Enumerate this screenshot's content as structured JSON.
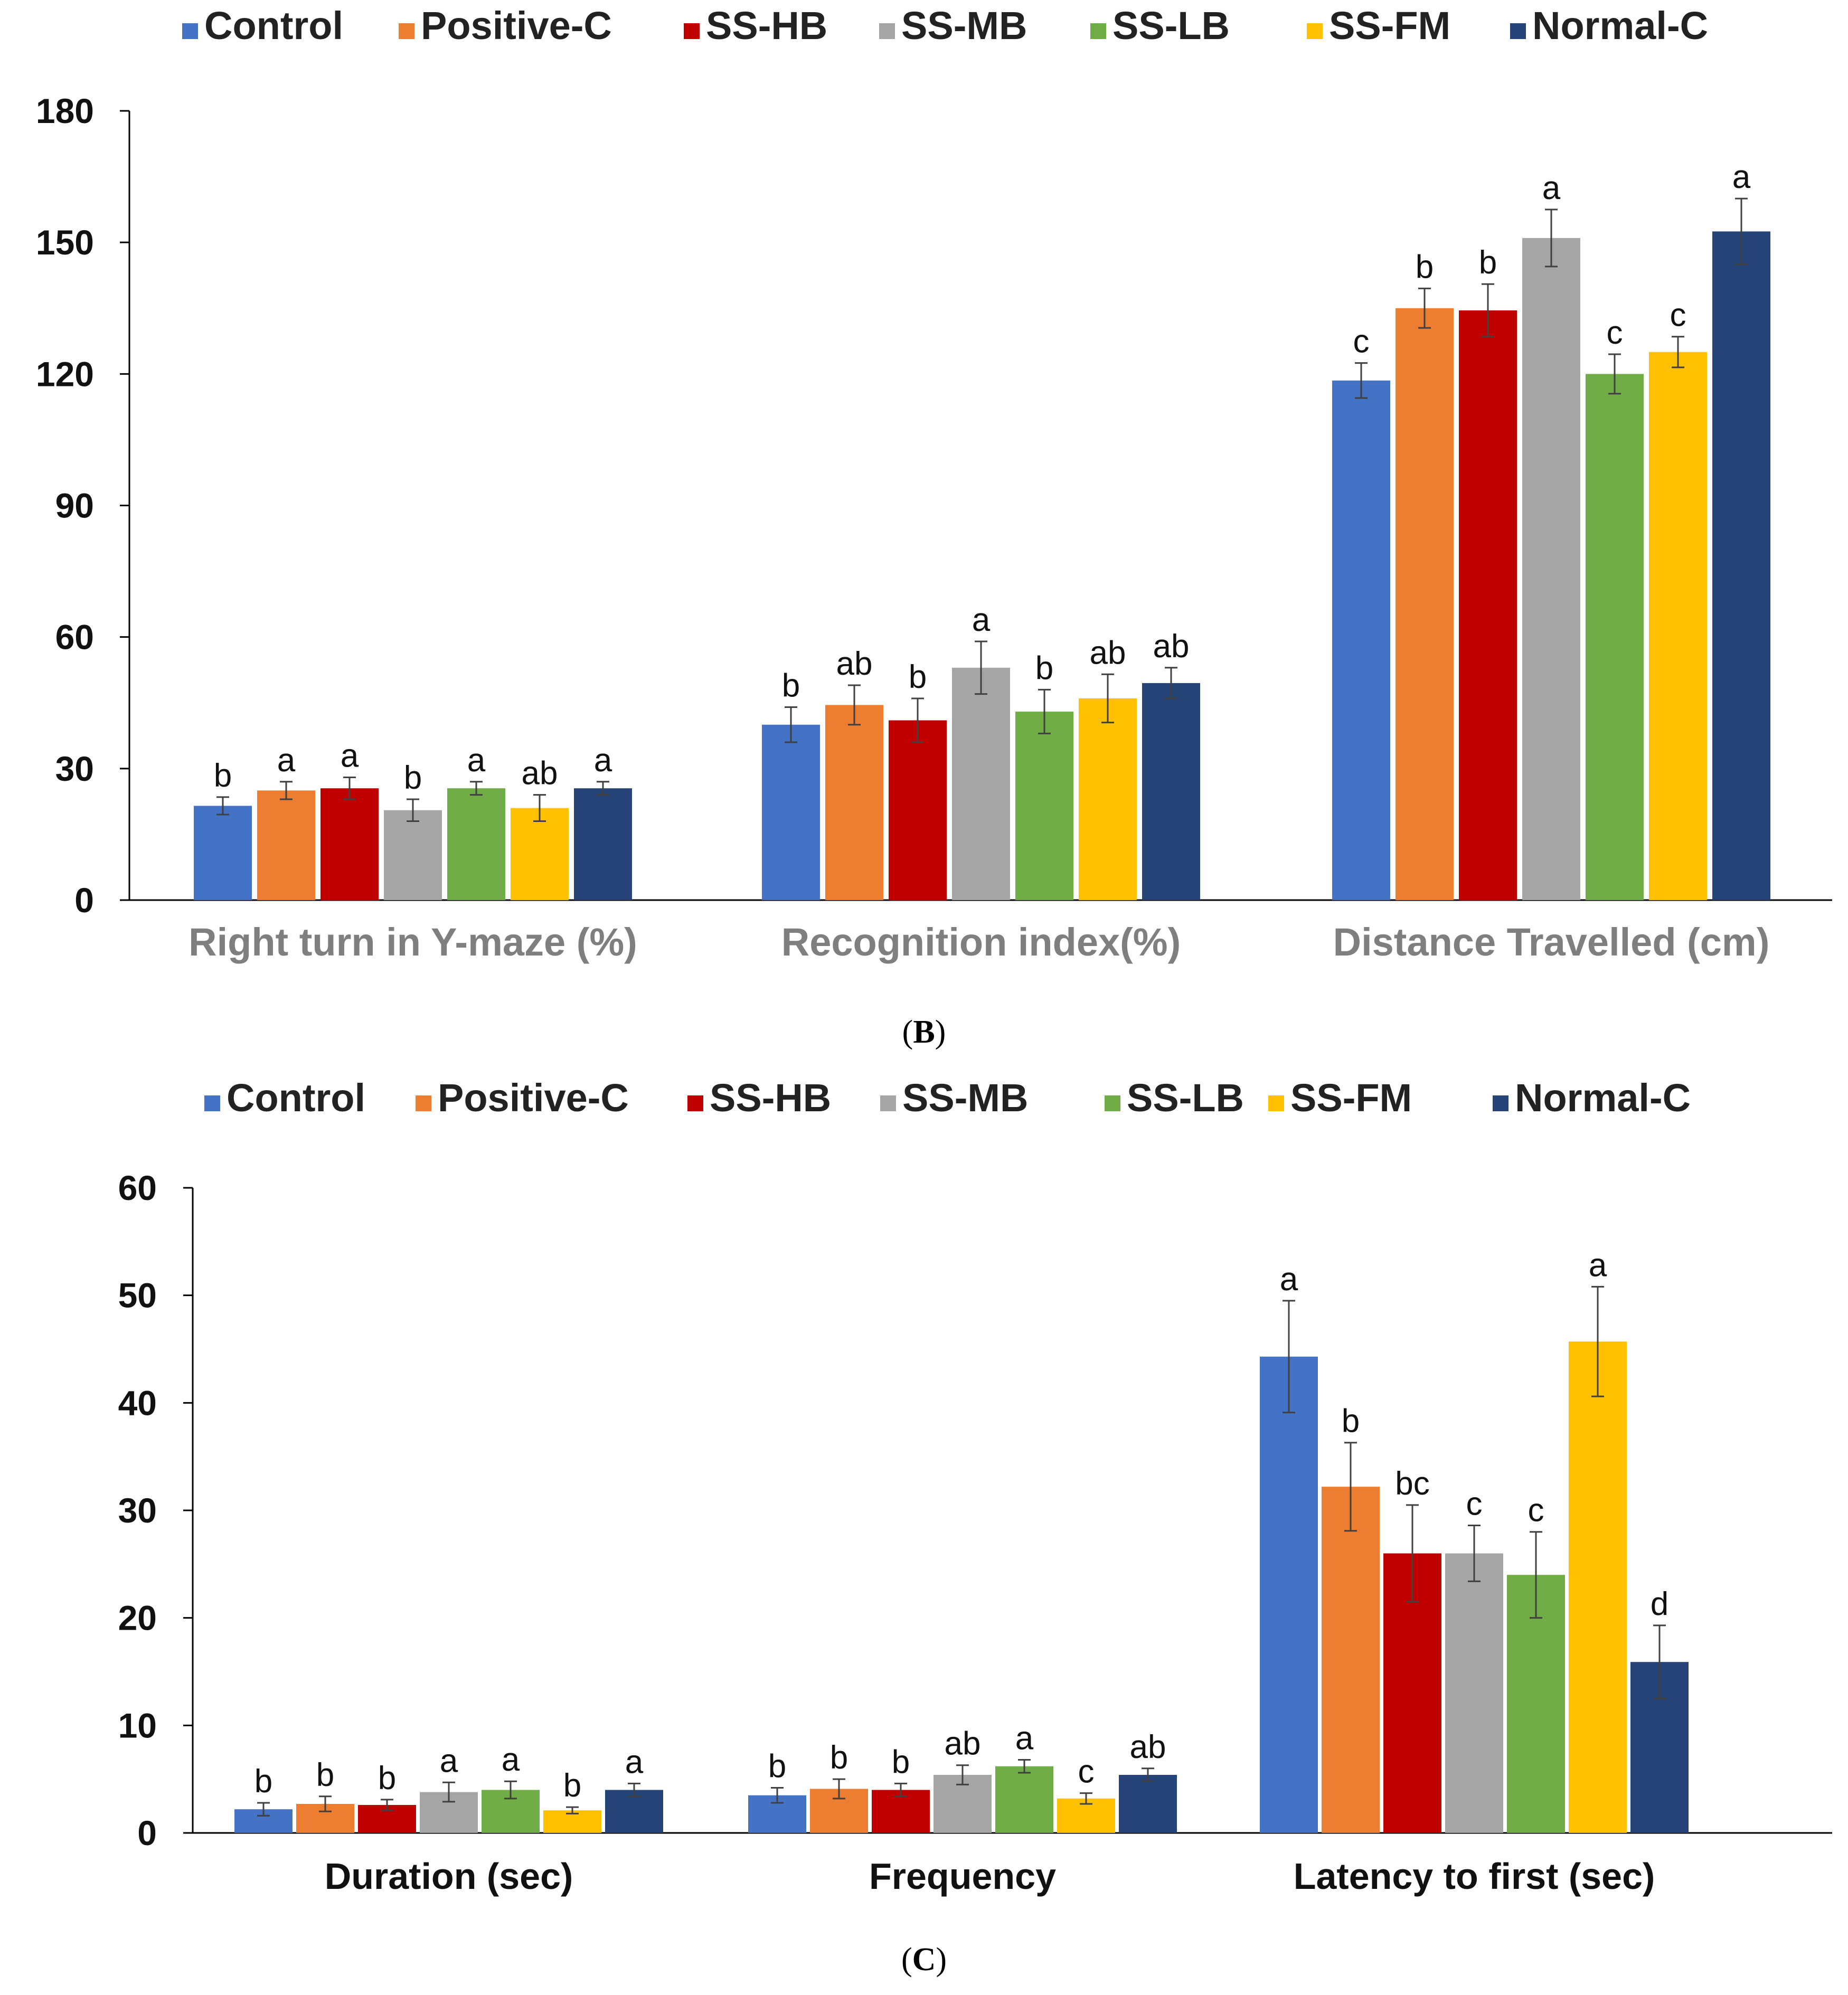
{
  "figure": {
    "panels": [
      "B",
      "C"
    ]
  },
  "colors": {
    "Control": "#4472c4",
    "Positive-C": "#ed7d31",
    "SS-HB": "#c00000",
    "SS-MB": "#a5a5a5",
    "SS-LB": "#70ad47",
    "SS-FM": "#ffc000",
    "Normal-C": "#264478"
  },
  "chart_data": [
    {
      "id": "B",
      "type": "bar",
      "panel_label": "B",
      "legend_position": "top",
      "categories": [
        "Right turn in Y-maze (%)",
        "Recognition index(%)",
        "Distance Travelled (cm)"
      ],
      "yticks": [
        "0",
        "30",
        "60",
        "90",
        "120",
        "150",
        "180"
      ],
      "ylim": [
        0,
        180
      ],
      "series": [
        {
          "name": "Control",
          "values": [
            21.5,
            40.0,
            118.5
          ],
          "errors": [
            2,
            4,
            4
          ],
          "letters": [
            "b",
            "b",
            "c"
          ]
        },
        {
          "name": "Positive-C",
          "values": [
            25.0,
            44.5,
            135.0
          ],
          "errors": [
            2,
            4.5,
            4.5
          ],
          "letters": [
            "a",
            "ab",
            "b"
          ]
        },
        {
          "name": "SS-HB",
          "values": [
            25.5,
            41.0,
            134.5
          ],
          "errors": [
            2.5,
            5,
            6
          ],
          "letters": [
            "a",
            "b",
            "b"
          ]
        },
        {
          "name": "SS-MB",
          "values": [
            20.5,
            53.0,
            151.0
          ],
          "errors": [
            2.5,
            6,
            6.5
          ],
          "letters": [
            "b",
            "a",
            "a"
          ]
        },
        {
          "name": "SS-LB",
          "values": [
            25.5,
            43.0,
            120.0
          ],
          "errors": [
            1.5,
            5,
            4.5
          ],
          "letters": [
            "a",
            "b",
            "c"
          ]
        },
        {
          "name": "SS-FM",
          "values": [
            21.0,
            46.0,
            125.0
          ],
          "errors": [
            3,
            5.5,
            3.5
          ],
          "letters": [
            "ab",
            "ab",
            "c"
          ]
        },
        {
          "name": "Normal-C",
          "values": [
            25.5,
            49.5,
            152.5
          ],
          "errors": [
            1.5,
            3.5,
            7.5
          ],
          "letters": [
            "a",
            "ab",
            "a"
          ]
        }
      ]
    },
    {
      "id": "C",
      "type": "bar",
      "panel_label": "C",
      "legend_position": "top",
      "categories": [
        "Duration (sec)",
        "Frequency",
        "Latency to first (sec)"
      ],
      "yticks": [
        "0",
        "10",
        "20",
        "30",
        "40",
        "50",
        "60"
      ],
      "ylim": [
        0,
        60
      ],
      "series": [
        {
          "name": "Control",
          "values": [
            2.2,
            3.5,
            44.3
          ],
          "errors": [
            0.6,
            0.7,
            5.2
          ],
          "letters": [
            "b",
            "b",
            "a"
          ]
        },
        {
          "name": "Positive-C",
          "values": [
            2.7,
            4.1,
            32.2
          ],
          "errors": [
            0.7,
            0.9,
            4.1
          ],
          "letters": [
            "b",
            "b",
            "b"
          ]
        },
        {
          "name": "SS-HB",
          "values": [
            2.6,
            4.0,
            26.0
          ],
          "errors": [
            0.5,
            0.6,
            4.5
          ],
          "letters": [
            "b",
            "b",
            "bc"
          ]
        },
        {
          "name": "SS-MB",
          "values": [
            3.8,
            5.4,
            26.0
          ],
          "errors": [
            0.9,
            0.9,
            2.6
          ],
          "letters": [
            "a",
            "ab",
            "c"
          ]
        },
        {
          "name": "SS-LB",
          "values": [
            4.0,
            6.2,
            24.0
          ],
          "errors": [
            0.8,
            0.6,
            4.0
          ],
          "letters": [
            "a",
            "a",
            "c"
          ]
        },
        {
          "name": "SS-FM",
          "values": [
            2.1,
            3.2,
            45.7
          ],
          "errors": [
            0.3,
            0.5,
            5.1
          ],
          "letters": [
            "b",
            "c",
            "a"
          ]
        },
        {
          "name": "Normal-C",
          "values": [
            4.0,
            5.4,
            15.9
          ],
          "errors": [
            0.6,
            0.6,
            3.4
          ],
          "letters": [
            "a",
            "ab",
            "d"
          ]
        }
      ]
    }
  ]
}
